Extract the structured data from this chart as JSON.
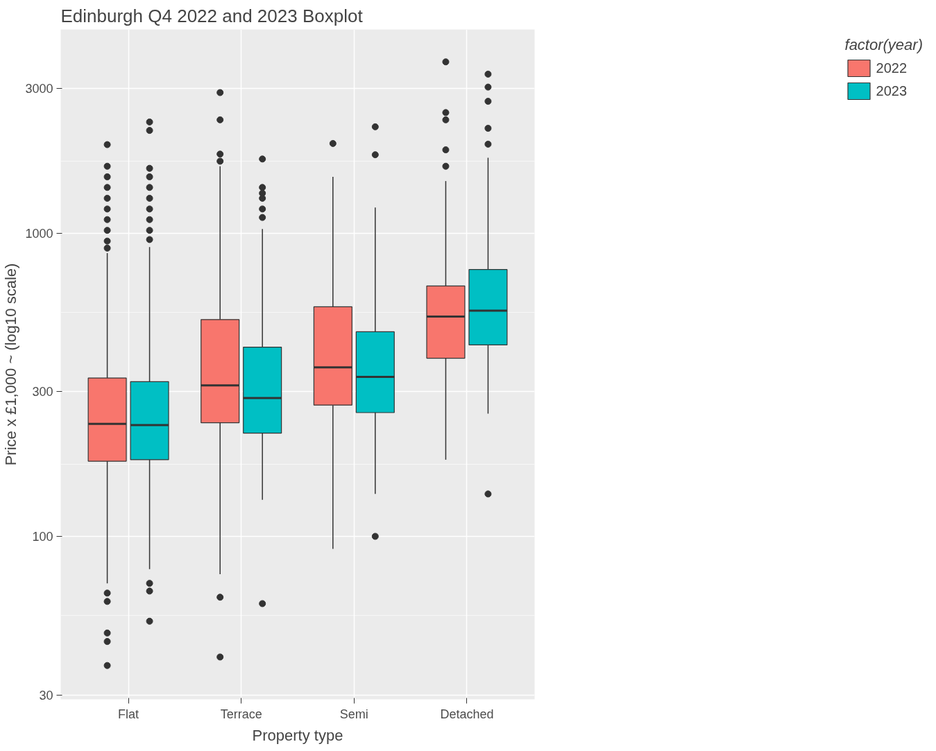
{
  "chart_data": {
    "type": "box",
    "title": "Edinburgh Q4 2022 and 2023 Boxplot",
    "xlabel": "Property type",
    "ylabel": "Price x £1,000 ~ (log10 scale)",
    "legend_title": "factor(year)",
    "categories": [
      "Flat",
      "Terrace",
      "Semi",
      "Detached"
    ],
    "log": "y",
    "grid": true,
    "legend": "right",
    "ylim": [
      29,
      4700
    ],
    "yticks": [
      30,
      100,
      300,
      1000,
      3000
    ],
    "series": [
      {
        "name": "2022",
        "color": "#f8766d",
        "boxes": [
          {
            "low": 70,
            "q1": 177,
            "median": 235,
            "q3": 333,
            "high": 860,
            "outliers": [
              1960,
              1663,
              1535,
              1416,
              1304,
              1202,
              1109,
              1022,
              942,
              893,
              65,
              61,
              48,
              45,
              37.5
            ]
          },
          {
            "low": 75,
            "q1": 237,
            "median": 315,
            "q3": 519,
            "high": 1663,
            "outliers": [
              2910,
              2366,
              1824,
              1728,
              63,
              40
            ]
          },
          {
            "low": 91,
            "q1": 271,
            "median": 361,
            "q3": 572,
            "high": 1535,
            "outliers": [
              1977
            ]
          },
          {
            "low": 179,
            "q1": 387,
            "median": 531,
            "q3": 670,
            "high": 1486,
            "outliers": [
              3675,
              2500,
              2366,
              1884,
              1663
            ]
          }
        ]
      },
      {
        "name": "2023",
        "color": "#00bfc4",
        "boxes": [
          {
            "low": 78,
            "q1": 179,
            "median": 233,
            "q3": 324,
            "high": 900,
            "outliers": [
              2328,
              2183,
              1637,
              1535,
              1416,
              1304,
              1202,
              1109,
              1022,
              953,
              70,
              66,
              52.5
            ]
          },
          {
            "low": 132,
            "q1": 219,
            "median": 286,
            "q3": 421,
            "high": 1033,
            "outliers": [
              1757,
              1416,
              1355,
              1304,
              1202,
              1127,
              60
            ]
          },
          {
            "low": 138,
            "q1": 256,
            "median": 336,
            "q3": 473,
            "high": 1216,
            "outliers": [
              2244,
              1815,
              100
            ]
          },
          {
            "low": 254,
            "q1": 428,
            "median": 555,
            "q3": 759,
            "high": 1775,
            "outliers": [
              3348,
              3034,
              2724,
              2219,
              1967,
              138
            ]
          }
        ]
      }
    ]
  }
}
